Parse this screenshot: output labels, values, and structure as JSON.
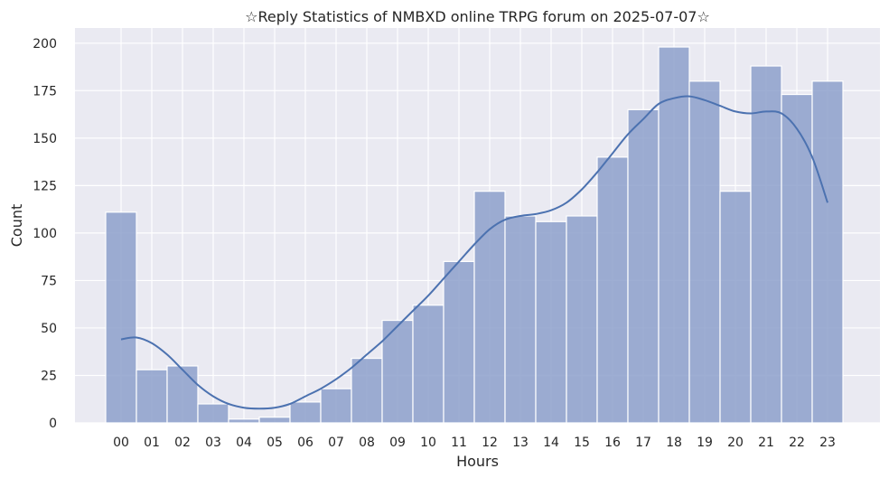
{
  "chart_data": {
    "type": "bar",
    "title": "☆Reply Statistics of NMBXD online TRPG forum on 2025-07-07☆",
    "xlabel": "Hours",
    "ylabel": "Count",
    "categories": [
      "00",
      "01",
      "02",
      "03",
      "04",
      "05",
      "06",
      "07",
      "08",
      "09",
      "10",
      "11",
      "12",
      "13",
      "14",
      "15",
      "16",
      "17",
      "18",
      "19",
      "20",
      "21",
      "22",
      "23"
    ],
    "values": [
      111,
      28,
      30,
      10,
      2,
      3,
      11,
      18,
      34,
      54,
      62,
      85,
      122,
      109,
      106,
      109,
      140,
      165,
      198,
      180,
      122,
      188,
      173,
      180
    ],
    "y_ticks": [
      0,
      25,
      50,
      75,
      100,
      125,
      150,
      175,
      200
    ],
    "ylim": [
      0,
      208
    ],
    "grid": true,
    "kde": {
      "x": [
        0,
        0.5,
        1,
        1.5,
        2,
        2.5,
        3,
        3.5,
        4,
        4.5,
        5,
        5.5,
        6,
        6.5,
        7,
        7.5,
        8,
        8.5,
        9,
        9.5,
        10,
        10.5,
        11,
        11.5,
        12,
        12.5,
        13,
        13.5,
        14,
        14.5,
        15,
        15.5,
        16,
        16.5,
        17,
        17.5,
        18,
        18.5,
        19,
        19.5,
        20,
        20.5,
        21,
        21.5,
        22,
        22.5,
        23
      ],
      "y": [
        44,
        45,
        42,
        36,
        28,
        20,
        14,
        10,
        8,
        7.5,
        8,
        10,
        14,
        18,
        23,
        29,
        36,
        43,
        51,
        59,
        67,
        76,
        85,
        94,
        102,
        107,
        109,
        110,
        112,
        116,
        123,
        132,
        142,
        152,
        160,
        168,
        171,
        172,
        170,
        167,
        164,
        163,
        164,
        163,
        155,
        140,
        116
      ]
    },
    "colors": {
      "bar_fill": "#8da0cb",
      "bar_stroke": "#ffffff",
      "kde_line": "#4c72b0",
      "plot_background": "#eaeaf2",
      "grid": "#ffffff"
    }
  }
}
